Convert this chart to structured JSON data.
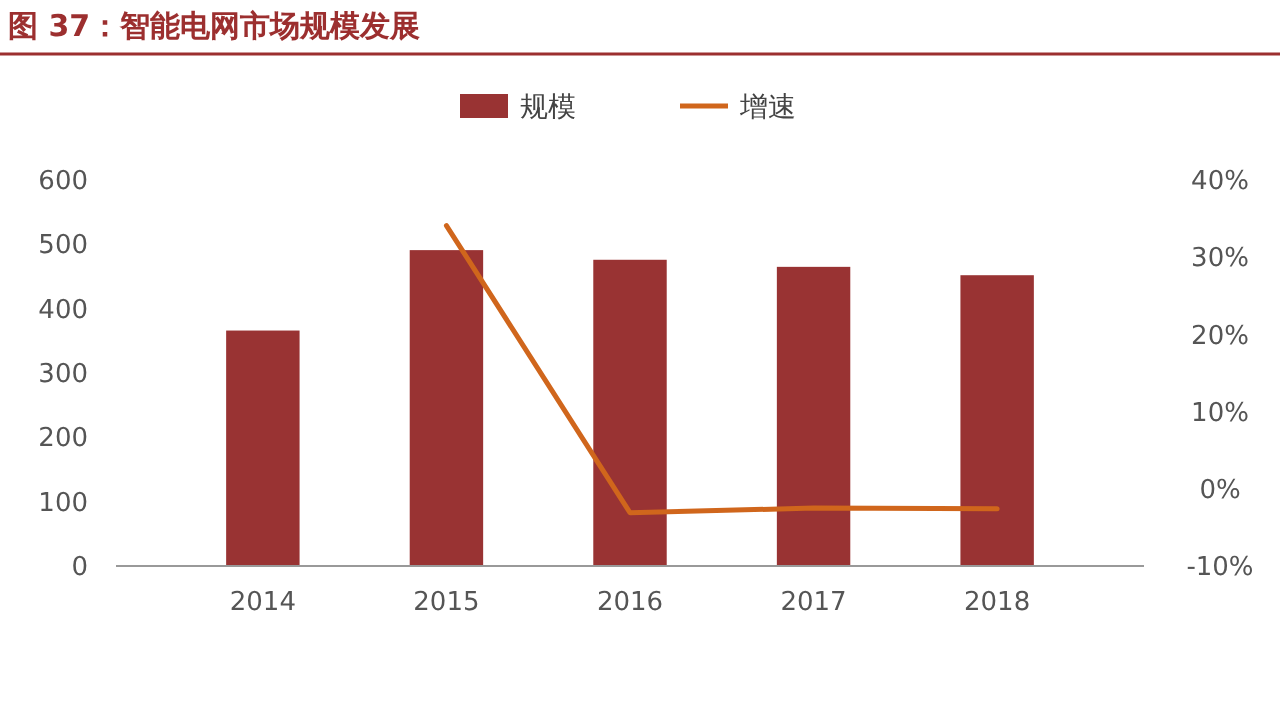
{
  "chart_data": {
    "type": "bar",
    "title": "图 37：智能电网市场规模发展",
    "categories": [
      "2014",
      "2015",
      "2016",
      "2017",
      "2018"
    ],
    "series": [
      {
        "name": "规模",
        "color": "#993333",
        "values": [
          366,
          491,
          476,
          465,
          452
        ]
      },
      {
        "name": "增速",
        "type": "line",
        "axis": "y2",
        "color": "#d0661c",
        "values": [
          null,
          34.1,
          -3.1,
          -2.5,
          -2.6
        ]
      }
    ],
    "ylim": [
      0,
      600
    ],
    "yticks": [
      0,
      100,
      200,
      300,
      400,
      500,
      600
    ],
    "y2lim": [
      -10,
      40
    ],
    "y2ticks": [
      {
        "value": -10,
        "label": "-10%"
      },
      {
        "value": 0,
        "label": "0%"
      },
      {
        "value": 10,
        "label": "10%"
      },
      {
        "value": 20,
        "label": "20%"
      },
      {
        "value": 30,
        "label": "30%"
      },
      {
        "value": 40,
        "label": "40%"
      }
    ],
    "legend": "top",
    "grid": false
  }
}
